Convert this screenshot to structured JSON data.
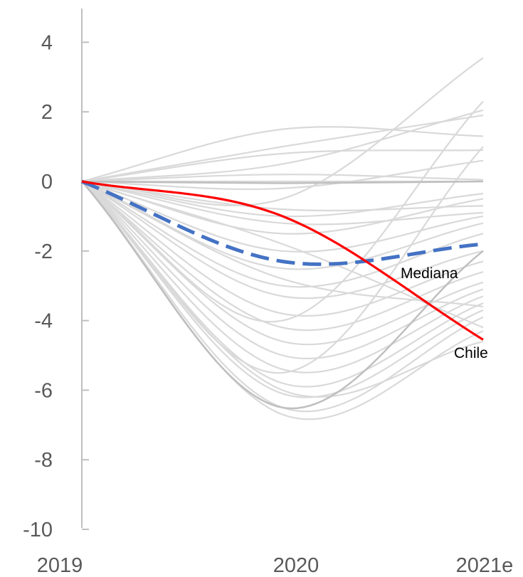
{
  "chart_data": {
    "type": "line",
    "categories": [
      "2019",
      "2020",
      "2021e"
    ],
    "ylim": [
      -10,
      5
    ],
    "yticks": [
      4,
      2,
      0,
      -2,
      -4,
      -6,
      -8,
      -10
    ],
    "grid": false,
    "colors": {
      "chile": "#ff0000",
      "median": "#4472c4",
      "others": "#d9d9d9",
      "others_dark": "#bfbfbf",
      "axis": "#bfbfbf"
    },
    "series": [
      {
        "name": "Chile",
        "values": [
          0,
          -1.0,
          -4.55
        ],
        "color": "#ff0000",
        "style": "solid"
      },
      {
        "name": "Mediana",
        "values": [
          0,
          -2.3,
          -1.8
        ],
        "color": "#4472c4",
        "style": "dashed"
      }
    ],
    "background_series": [
      [
        0,
        0.5,
        2.05
      ],
      [
        0,
        1.0,
        1.9
      ],
      [
        0,
        1.5,
        1.3
      ],
      [
        0,
        0.8,
        0.9
      ],
      [
        0,
        0.2,
        0.05
      ],
      [
        0,
        0.0,
        0.0
      ],
      [
        0,
        -0.2,
        0.6
      ],
      [
        0,
        -0.5,
        3.55
      ],
      [
        0,
        -1.0,
        -0.35
      ],
      [
        0,
        -0.8,
        -0.7
      ],
      [
        0,
        -1.5,
        -0.5
      ],
      [
        0,
        -1.2,
        -0.9
      ],
      [
        0,
        -2.0,
        -1.0
      ],
      [
        0,
        -2.5,
        -1.2
      ],
      [
        0,
        -3.0,
        -1.5
      ],
      [
        0,
        -3.3,
        -2.0
      ],
      [
        0,
        -3.8,
        -2.3
      ],
      [
        0,
        -4.2,
        -2.6
      ],
      [
        0,
        -4.6,
        -2.9
      ],
      [
        0,
        -5.0,
        -3.1
      ],
      [
        0,
        -5.4,
        -3.3
      ],
      [
        0,
        -5.8,
        -3.5
      ],
      [
        0,
        -6.1,
        -3.7
      ],
      [
        0,
        -6.5,
        -3.9
      ],
      [
        0,
        -6.7,
        -4.3
      ],
      [
        0,
        -6.0,
        -4.6
      ],
      [
        0,
        -5.5,
        1.0
      ],
      [
        0,
        -4.0,
        2.3
      ],
      [
        0,
        -2.8,
        -3.6
      ],
      [
        0,
        -1.8,
        -4.2
      ]
    ],
    "background_series_dark": [
      [
        0,
        -6.5,
        -2.0
      ],
      [
        0,
        -0.05,
        0.0
      ]
    ]
  }
}
